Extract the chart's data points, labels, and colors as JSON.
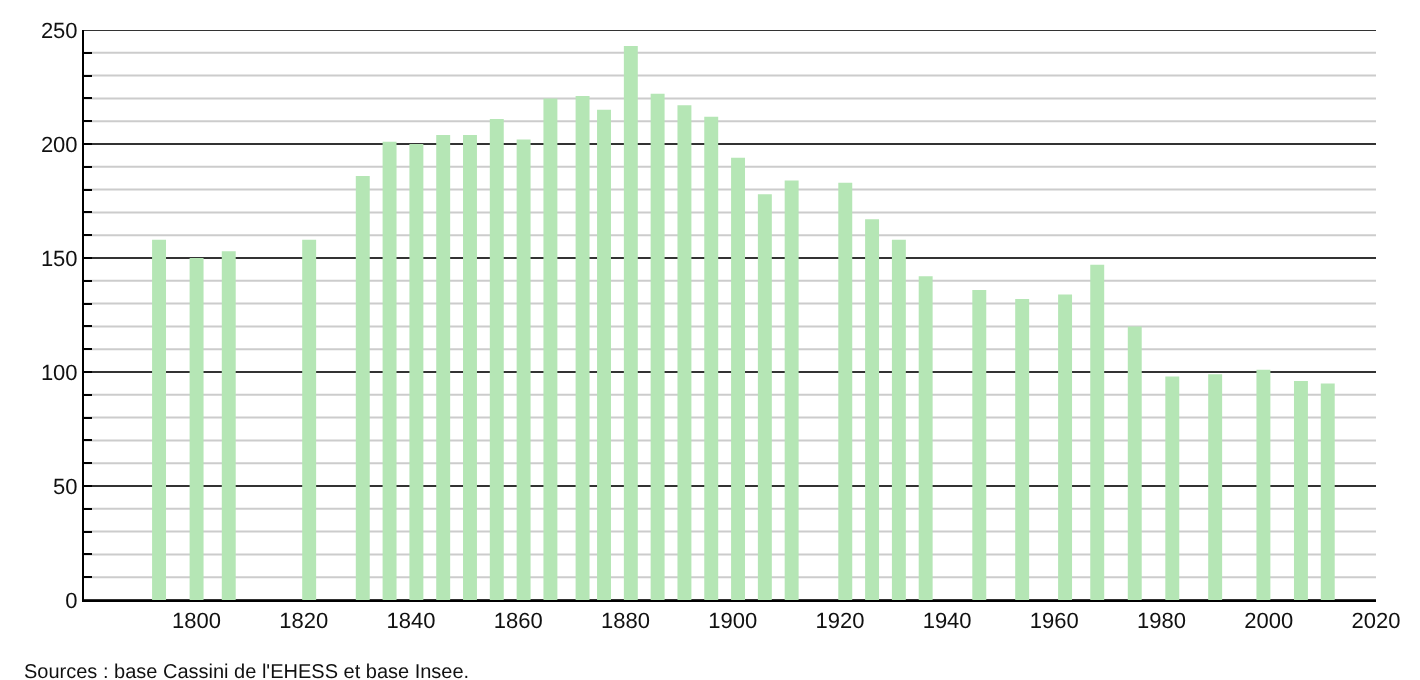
{
  "chart_data": {
    "type": "bar",
    "x": [
      1793,
      1800,
      1806,
      1821,
      1831,
      1836,
      1841,
      1846,
      1851,
      1856,
      1861,
      1866,
      1872,
      1876,
      1881,
      1886,
      1891,
      1896,
      1901,
      1906,
      1911,
      1921,
      1926,
      1931,
      1936,
      1946,
      1954,
      1962,
      1968,
      1975,
      1982,
      1990,
      1999,
      2006,
      2011
    ],
    "values": [
      158,
      150,
      153,
      158,
      186,
      201,
      200,
      204,
      204,
      211,
      202,
      220,
      221,
      215,
      243,
      222,
      217,
      212,
      194,
      178,
      184,
      183,
      167,
      158,
      142,
      136,
      132,
      134,
      147,
      120,
      98,
      99,
      101,
      96,
      95
    ],
    "color": "#b5e6b5",
    "xlim": [
      1779,
      2020
    ],
    "xticks": [
      1800,
      1820,
      1840,
      1860,
      1880,
      1900,
      1920,
      1940,
      1960,
      1980,
      2000,
      2020
    ],
    "ylim": [
      0,
      250
    ],
    "yticks": [
      0,
      {
        "value": 10,
        "label": null
      },
      {
        "value": 20,
        "label": null
      },
      {
        "value": 30,
        "label": null
      },
      {
        "value": 40,
        "label": null
      },
      50,
      {
        "value": 60,
        "label": null
      },
      {
        "value": 70,
        "label": null
      },
      {
        "value": 80,
        "label": null
      },
      {
        "value": 90,
        "label": null
      },
      100,
      {
        "value": 110,
        "label": null
      },
      {
        "value": 120,
        "label": null
      },
      {
        "value": 130,
        "label": null
      },
      {
        "value": 140,
        "label": null
      },
      150,
      {
        "value": 160,
        "label": null
      },
      {
        "value": 170,
        "label": null
      },
      {
        "value": 180,
        "label": null
      },
      {
        "value": 190,
        "label": null
      },
      200,
      {
        "value": 210,
        "label": null
      },
      {
        "value": 220,
        "label": null
      },
      {
        "value": 230,
        "label": null
      },
      {
        "value": 240,
        "label": null
      },
      250
    ],
    "grid": "y",
    "annotations": [
      "Sources : base Cassini de l'EHESS et base Insee."
    ]
  }
}
